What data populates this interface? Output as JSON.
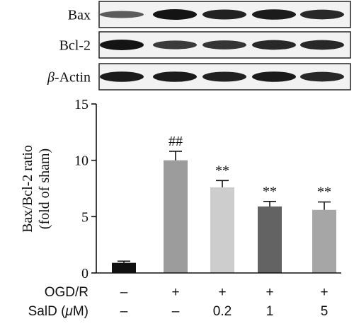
{
  "blots": [
    {
      "label_prefix": "",
      "label_italic": "",
      "label_suffix": "Bax",
      "intensity": [
        0.45,
        1.0,
        0.9,
        0.95,
        0.85
      ]
    },
    {
      "label_prefix": "",
      "label_italic": "",
      "label_suffix": "Bcl-2",
      "intensity": [
        1.0,
        0.7,
        0.75,
        0.85,
        0.85
      ]
    },
    {
      "label_prefix": "",
      "label_italic": "β",
      "label_suffix": "-Actin",
      "intensity": [
        0.95,
        0.95,
        0.9,
        0.95,
        0.85
      ]
    }
  ],
  "chart_data": {
    "type": "bar",
    "ylabel_line1": "Bax/Bcl-2 ratio",
    "ylabel_line2": "(fold of sham)",
    "ylim": [
      0,
      15
    ],
    "yticks": [
      "0",
      "5",
      "10",
      "15"
    ],
    "values": [
      0.9,
      10.0,
      7.6,
      5.9,
      5.6
    ],
    "errors": [
      0.15,
      0.8,
      0.6,
      0.45,
      0.7
    ],
    "colors": [
      "#111111",
      "#9c9c9c",
      "#cdcdcd",
      "#636363",
      "#a6a6a6"
    ],
    "annotations": [
      "",
      "##",
      "**",
      "**",
      "**"
    ],
    "conditions": [
      {
        "label": "OGD/R",
        "label_prefix": "",
        "label_italic": "",
        "label_suffix": "",
        "values": [
          "–",
          "+",
          "+",
          "+",
          "+"
        ]
      },
      {
        "label": "",
        "label_prefix": "SalD (",
        "label_italic": "μ",
        "label_suffix": "M)",
        "values": [
          "–",
          "–",
          "0.2",
          "1",
          "5"
        ]
      }
    ]
  }
}
